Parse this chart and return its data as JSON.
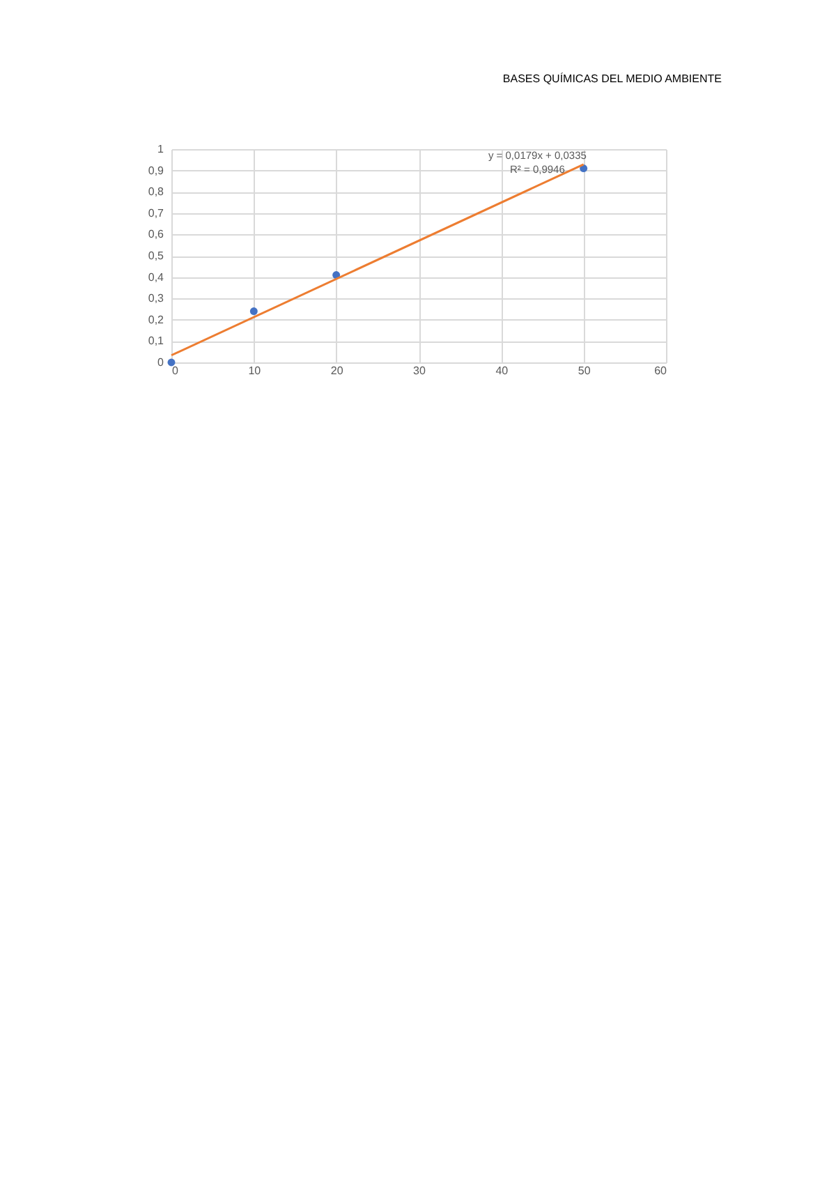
{
  "chart_data": {
    "type": "scatter",
    "title": "BASES QUÍMICAS DEL MEDIO AMBIENTE",
    "series": [
      {
        "type": "scatter",
        "color": "#4472c4",
        "x": [
          0,
          10,
          20,
          50
        ],
        "values": [
          0,
          0.24,
          0.41,
          0.91
        ],
        "marker": "circle"
      },
      {
        "type": "line",
        "color": "#ed7d31",
        "x": [
          0,
          50
        ],
        "values": [
          0.0335,
          0.9285
        ]
      }
    ],
    "xlim": [
      0,
      60
    ],
    "xticks": [
      0,
      10,
      20,
      30,
      40,
      50,
      60
    ],
    "ylim": [
      0,
      1
    ],
    "yticks": [
      {
        "value": 0,
        "label": "0"
      },
      {
        "value": 0.1,
        "label": "0,1"
      },
      {
        "value": 0.2,
        "label": "0,2"
      },
      {
        "value": 0.3,
        "label": "0,3"
      },
      {
        "value": 0.4,
        "label": "0,4"
      },
      {
        "value": 0.5,
        "label": "0,5"
      },
      {
        "value": 0.6,
        "label": "0,6"
      },
      {
        "value": 0.7,
        "label": "0,7"
      },
      {
        "value": 0.8,
        "label": "0,8"
      },
      {
        "value": 0.9,
        "label": "0,9"
      },
      {
        "value": 1,
        "label": "1"
      }
    ],
    "grid": true,
    "annotations": [
      "y = 0,0179x + 0,0335",
      "R² = 0,9946"
    ]
  }
}
